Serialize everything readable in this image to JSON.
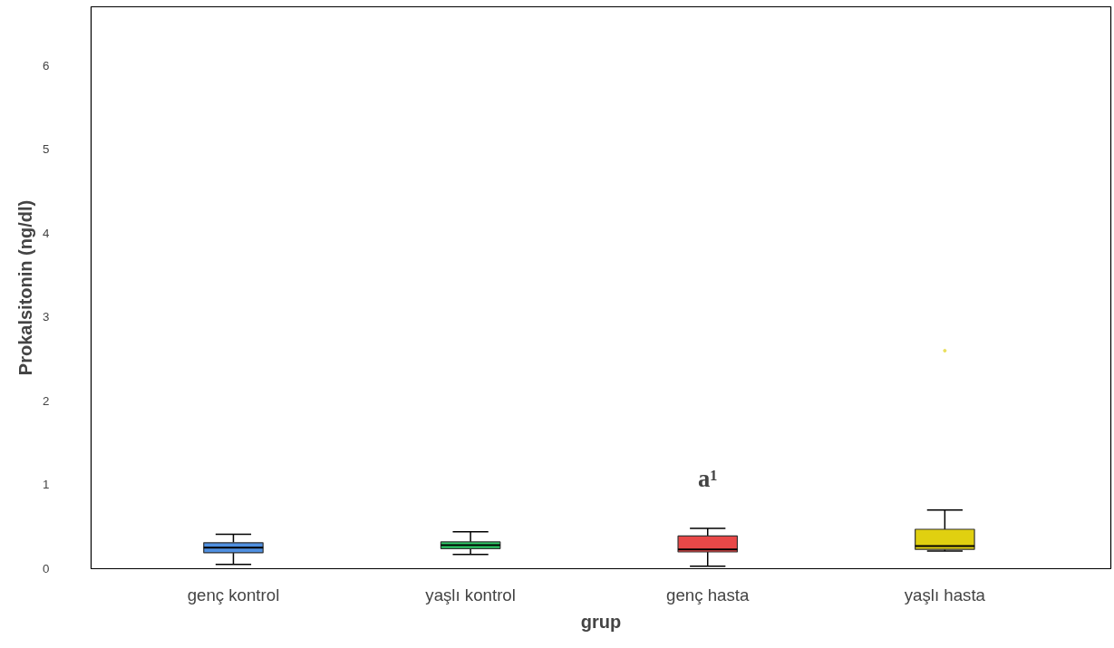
{
  "chart_data": {
    "type": "box",
    "xlabel": "grup",
    "ylabel": "Prokalsitonin (ng/dl)",
    "categories": [
      "genç kontrol",
      "yaşlı kontrol",
      "genç hasta",
      "yaşlı hasta"
    ],
    "boxes": [
      {
        "low": 0.05,
        "q1": 0.19,
        "median": 0.25,
        "q3": 0.31,
        "high": 0.41
      },
      {
        "low": 0.17,
        "q1": 0.24,
        "median": 0.28,
        "q3": 0.32,
        "high": 0.44
      },
      {
        "low": 0.03,
        "q1": 0.2,
        "median": 0.23,
        "q3": 0.39,
        "high": 0.48
      },
      {
        "low": 0.21,
        "q1": 0.23,
        "median": 0.27,
        "q3": 0.47,
        "high": 0.7,
        "outliers": [
          2.6
        ]
      }
    ],
    "colors": [
      "#4f8fe0",
      "#2ec866",
      "#e84848",
      "#e0d010"
    ],
    "ylim": [
      0,
      6.7
    ],
    "yticks": [
      0,
      1,
      2,
      3,
      4,
      5,
      6
    ],
    "annotations": [
      "a¹"
    ]
  }
}
